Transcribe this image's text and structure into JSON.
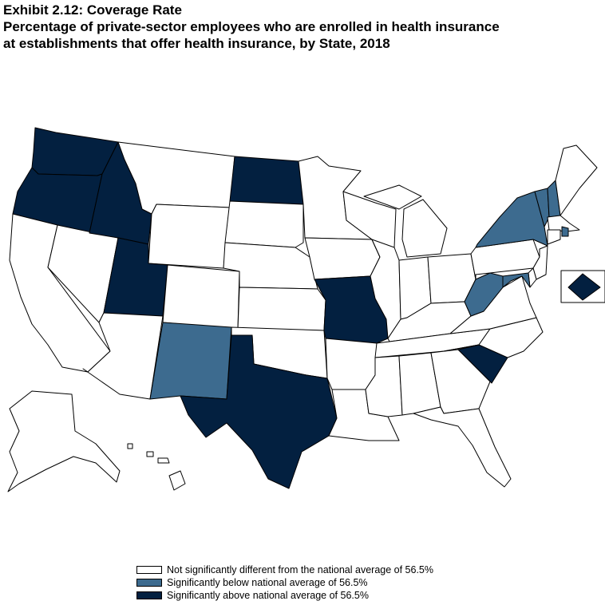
{
  "title": {
    "line1": "Exhibit 2.12: Coverage Rate",
    "line2": "Percentage of private-sector employees who are enrolled in health insurance",
    "line3": "at establishments that offer health insurance, by State, 2018"
  },
  "colors": {
    "not_significant": "#ffffff",
    "below": "#3d6b8f",
    "above": "#032040"
  },
  "legend": [
    {
      "category": "not_significant",
      "label": "Not significantly different from the national average of 56.5%"
    },
    {
      "category": "below",
      "label": "Significantly below national average of 56.5%"
    },
    {
      "category": "above",
      "label": "Significantly above national average of 56.5%"
    }
  ],
  "states": {
    "WA": "above",
    "OR": "above",
    "ID": "above",
    "UT": "above",
    "ND": "above",
    "MO": "above",
    "TX": "above",
    "SC": "above",
    "DC": "above",
    "NY": "below",
    "VT": "below",
    "NH": "below",
    "RI": "below",
    "WV": "below",
    "NM": "below",
    "MD": "below",
    "CA": "not_significant",
    "NV": "not_significant",
    "AZ": "not_significant",
    "MT": "not_significant",
    "WY": "not_significant",
    "CO": "not_significant",
    "SD": "not_significant",
    "NE": "not_significant",
    "KS": "not_significant",
    "OK": "not_significant",
    "MN": "not_significant",
    "IA": "not_significant",
    "AR": "not_significant",
    "LA": "not_significant",
    "WI": "not_significant",
    "IL": "not_significant",
    "MI": "not_significant",
    "IN": "not_significant",
    "OH": "not_significant",
    "KY": "not_significant",
    "TN": "not_significant",
    "MS": "not_significant",
    "AL": "not_significant",
    "GA": "not_significant",
    "FL": "not_significant",
    "NC": "not_significant",
    "VA": "not_significant",
    "PA": "not_significant",
    "NJ": "not_significant",
    "DE": "not_significant",
    "CT": "not_significant",
    "MA": "not_significant",
    "ME": "not_significant",
    "AK": "not_significant",
    "HI": "not_significant"
  }
}
